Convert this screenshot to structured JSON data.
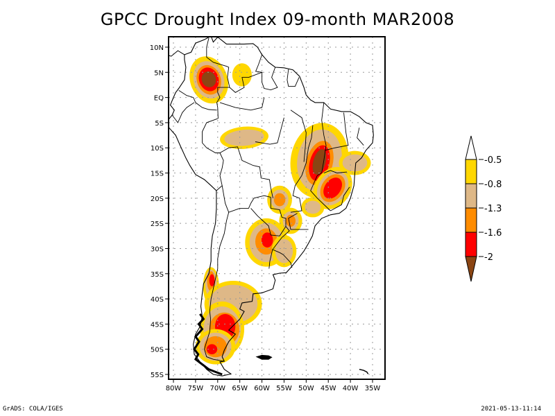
{
  "title": "GPCC Drought Index 09-month MAR2008",
  "footer": {
    "left": "GrADS: COLA/IGES",
    "right": "2021-05-13-11:14"
  },
  "map": {
    "region": "South America",
    "lon_range": [
      -81,
      -33
    ],
    "lat_range": [
      12,
      -56
    ],
    "lat_ticks": [
      {
        "value": 10,
        "label": "10N"
      },
      {
        "value": 5,
        "label": "5N"
      },
      {
        "value": 0,
        "label": "EQ"
      },
      {
        "value": -5,
        "label": "5S"
      },
      {
        "value": -10,
        "label": "10S"
      },
      {
        "value": -15,
        "label": "15S"
      },
      {
        "value": -20,
        "label": "20S"
      },
      {
        "value": -25,
        "label": "25S"
      },
      {
        "value": -30,
        "label": "30S"
      },
      {
        "value": -35,
        "label": "35S"
      },
      {
        "value": -40,
        "label": "40S"
      },
      {
        "value": -45,
        "label": "45S"
      },
      {
        "value": -50,
        "label": "50S"
      },
      {
        "value": -55,
        "label": "55S"
      }
    ],
    "lon_ticks": [
      {
        "value": -80,
        "label": "80W"
      },
      {
        "value": -75,
        "label": "75W"
      },
      {
        "value": -70,
        "label": "70W"
      },
      {
        "value": -65,
        "label": "65W"
      },
      {
        "value": -60,
        "label": "60W"
      },
      {
        "value": -55,
        "label": "55W"
      },
      {
        "value": -50,
        "label": "50W"
      },
      {
        "value": -45,
        "label": "45W"
      },
      {
        "value": -40,
        "label": "40W"
      },
      {
        "value": -35,
        "label": "35W"
      }
    ],
    "drought_regions": [
      {
        "name": "colombia",
        "lon": -71.5,
        "lat": 3.5,
        "max_level": 5
      },
      {
        "name": "venezuela-east",
        "lon": -65,
        "lat": 4.5,
        "max_level": 1
      },
      {
        "name": "amazon-west",
        "lon": -65,
        "lat": -8,
        "max_level": 2
      },
      {
        "name": "brazil-central",
        "lon": -47,
        "lat": -13,
        "max_level": 5
      },
      {
        "name": "brazil-se",
        "lon": -44,
        "lat": -18,
        "max_level": 4
      },
      {
        "name": "bahia",
        "lon": -39,
        "lat": -13,
        "max_level": 2
      },
      {
        "name": "mato-grosso-sul",
        "lon": -56,
        "lat": -20,
        "max_level": 3
      },
      {
        "name": "parana",
        "lon": -53,
        "lat": -24.5,
        "max_level": 3
      },
      {
        "name": "sao-paulo",
        "lon": -48,
        "lat": -22,
        "max_level": 2
      },
      {
        "name": "chaco",
        "lon": -58.5,
        "lat": -28.5,
        "max_level": 4
      },
      {
        "name": "rio-grande-sul",
        "lon": -55,
        "lat": -31,
        "max_level": 2
      },
      {
        "name": "chile-central",
        "lon": -71.5,
        "lat": -37,
        "max_level": 4
      },
      {
        "name": "patagonia-north",
        "lon": -66,
        "lat": -40,
        "max_level": 2
      },
      {
        "name": "patagonia-center",
        "lon": -69,
        "lat": -45.5,
        "max_level": 4
      },
      {
        "name": "patagonia-south",
        "lon": -70,
        "lat": -49.5,
        "max_level": 4
      }
    ]
  },
  "colorbar": {
    "levels": [
      {
        "label": "-0.5",
        "color": "#FFD700"
      },
      {
        "label": "-0.8",
        "color": "#DEB887"
      },
      {
        "label": "-1.3",
        "color": "#FF8C00"
      },
      {
        "label": "-1.6",
        "color": "#FF0000"
      },
      {
        "label": "-2",
        "color": "#8B4513"
      }
    ],
    "top_color": "#FFFFFF",
    "bands": [
      "#FFD700",
      "#DEB887",
      "#FF8C00",
      "#FF0000"
    ],
    "bottom_color": "#8B4513"
  }
}
